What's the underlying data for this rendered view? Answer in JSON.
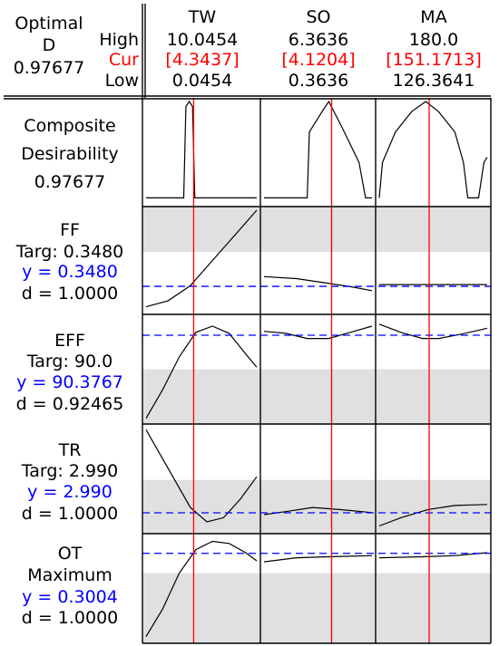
{
  "header": {
    "optimal_label": "Optimal",
    "d_label": "D",
    "d_value": "0.97677",
    "high_label": "High",
    "cur_label": "Cur",
    "low_label": "Low"
  },
  "factors": [
    {
      "name": "TW",
      "high": "10.0454",
      "cur": "[4.3437]",
      "low": "0.0454"
    },
    {
      "name": "SO",
      "high": "6.3636",
      "cur": "[4.1204]",
      "low": "0.3636"
    },
    {
      "name": "MA",
      "high": "180.0",
      "cur": "[151.1713]",
      "low": "126.3641"
    }
  ],
  "composite": {
    "label_line1": "Composite",
    "label_line2": "Desirability",
    "value": "0.97677"
  },
  "responses": [
    {
      "name": "FF",
      "goal": "Targ: 0.3480",
      "y": "y = 0.3480",
      "d": "d = 1.0000"
    },
    {
      "name": "EFF",
      "goal": "Targ: 90.0",
      "y": "y = 90.3767",
      "d": "d = 0.92465"
    },
    {
      "name": "TR",
      "goal": "Targ: 2.990",
      "y": "y = 2.990",
      "d": "d = 1.0000"
    },
    {
      "name": "OT",
      "goal": "Maximum",
      "y": "y = 0.3004",
      "d": "d = 1.0000"
    }
  ],
  "colors": {
    "cur": "#ff0000",
    "response": "#0000ff",
    "shade": "#e0e0e0",
    "curve": "#000000",
    "ref": "#0000ff"
  },
  "chart_data": {
    "type": "line",
    "factor_ranges": [
      [
        0.0454,
        10.0454
      ],
      [
        0.3636,
        6.3636
      ],
      [
        126.3641,
        180.0
      ]
    ],
    "current": [
      4.3437,
      4.1204,
      151.1713
    ],
    "composite_desirability": 0.97677,
    "responses": [
      {
        "name": "FF",
        "current_y": 0.348,
        "d": 1.0
      },
      {
        "name": "EFF",
        "current_y": 90.3767,
        "d": 0.92465
      },
      {
        "name": "TR",
        "current_y": 2.99,
        "d": 1.0
      },
      {
        "name": "OT",
        "current_y": 0.3004,
        "d": 1.0
      }
    ]
  }
}
